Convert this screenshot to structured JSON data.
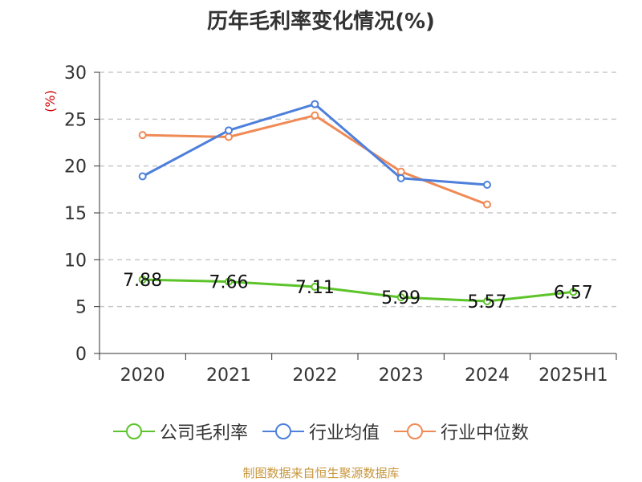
{
  "title": "历年毛利率变化情况(%)",
  "footer": "制图数据来自恒生聚源数据库",
  "chart_data": {
    "type": "line",
    "title": "历年毛利率变化情况(%)",
    "ylabel": "(%)",
    "xlabel": "",
    "categories": [
      "2020",
      "2021",
      "2022",
      "2023",
      "2024",
      "2025H1"
    ],
    "ylim": [
      0,
      30
    ],
    "yticks": [
      0,
      5,
      10,
      15,
      20,
      25,
      30
    ],
    "grid": true,
    "legend_position": "bottom",
    "series": [
      {
        "name": "公司毛利率",
        "color": "#5cc42a",
        "values": [
          7.88,
          7.66,
          7.11,
          5.99,
          5.57,
          6.57
        ],
        "labels": [
          "7.88",
          "7.66",
          "7.11",
          "5.99",
          "5.57",
          "6.57"
        ]
      },
      {
        "name": "行业均值",
        "color": "#4d7fdb",
        "values": [
          18.9,
          23.8,
          26.6,
          18.7,
          18.0,
          null
        ]
      },
      {
        "name": "行业中位数",
        "color": "#f08a55",
        "values": [
          23.3,
          23.1,
          25.4,
          19.4,
          15.9,
          null
        ]
      }
    ]
  }
}
